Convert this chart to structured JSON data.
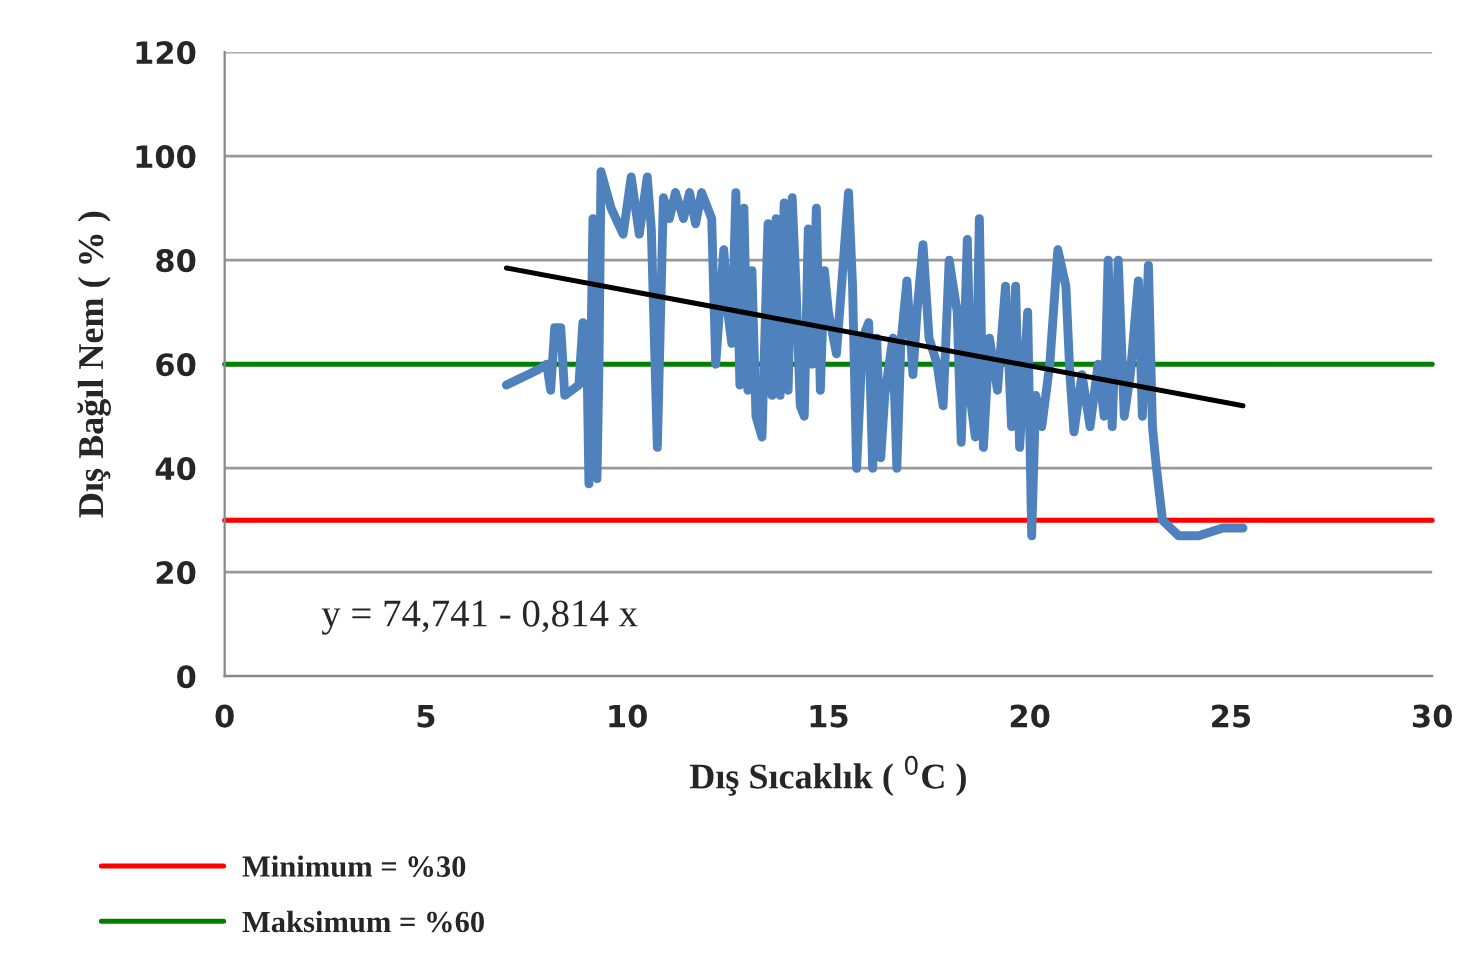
{
  "chart_data": {
    "type": "line",
    "xlabel": "Dış Sıcaklık ( $^{0}$C )",
    "ylabel": "Dış Bağıl Nem ( % )",
    "xlim": [
      0,
      30
    ],
    "xticks": [
      0,
      5,
      10,
      15,
      20,
      25,
      30
    ],
    "ylim": [
      0,
      120
    ],
    "yticks": [
      0,
      20,
      40,
      60,
      80,
      100,
      120
    ],
    "grid": "y",
    "legend": "bottom",
    "marker": "none",
    "line_style": "solid",
    "series": [
      {
        "color": "#4f81bd",
        "x": [
          7.0,
          7.8,
          8.0,
          8.1,
          8.2,
          8.35,
          8.45,
          8.8,
          8.9,
          9.0,
          9.05,
          9.15,
          9.25,
          9.3,
          9.35,
          9.6,
          9.9,
          10.1,
          10.3,
          10.5,
          10.6,
          10.75,
          10.9,
          11.05,
          11.2,
          11.4,
          11.55,
          11.7,
          11.85,
          12.0,
          12.1,
          12.2,
          12.4,
          12.5,
          12.6,
          12.7,
          12.8,
          12.9,
          13.0,
          13.1,
          13.2,
          13.35,
          13.5,
          13.6,
          13.7,
          13.8,
          13.9,
          14.0,
          14.1,
          14.2,
          14.3,
          14.4,
          14.5,
          14.6,
          14.7,
          14.8,
          14.9,
          15.0,
          15.2,
          15.5,
          15.6,
          15.7,
          15.85,
          16.0,
          16.1,
          16.2,
          16.3,
          16.4,
          16.6,
          16.7,
          16.8,
          16.95,
          17.1,
          17.2,
          17.35,
          17.5,
          17.7,
          17.85,
          18.0,
          18.2,
          18.3,
          18.45,
          18.55,
          18.65,
          18.75,
          18.85,
          19.0,
          19.2,
          19.4,
          19.55,
          19.65,
          19.75,
          19.95,
          20.05,
          20.15,
          20.3,
          20.5,
          20.7,
          20.9,
          21.0,
          21.1,
          21.3,
          21.5,
          21.7,
          21.85,
          21.95,
          22.05,
          22.2,
          22.35,
          22.5,
          22.7,
          22.8,
          22.95,
          23.05,
          23.15,
          23.3,
          23.7,
          24.2,
          24.8,
          25.3
        ],
        "values": [
          56,
          59,
          60,
          55,
          67,
          67,
          54,
          56,
          68,
          62,
          37,
          88,
          38,
          60,
          97,
          90,
          85,
          96,
          85,
          96,
          86,
          44,
          92,
          88,
          93,
          88,
          93,
          87,
          93,
          90,
          88,
          60,
          82,
          70,
          64,
          93,
          56,
          90,
          55,
          78,
          50,
          46,
          87,
          54,
          88,
          54,
          91,
          55,
          92,
          74,
          52,
          50,
          86,
          60,
          90,
          55,
          78,
          70,
          62,
          93,
          75,
          40,
          65,
          68,
          40,
          65,
          42,
          54,
          65,
          40,
          64,
          76,
          58,
          70,
          83,
          65,
          60,
          52,
          80,
          70,
          45,
          84,
          52,
          46,
          88,
          44,
          65,
          55,
          75,
          48,
          75,
          44,
          70,
          27,
          54,
          48,
          60,
          82,
          75,
          58,
          47,
          58,
          48,
          60,
          50,
          80,
          48,
          80,
          50,
          58,
          76,
          50,
          79,
          48,
          40,
          30,
          27,
          27,
          28.5,
          28.5
        ]
      },
      {
        "color": "#000000",
        "x": [
          7.0,
          25.3
        ],
        "values": [
          78.5,
          52
        ]
      }
    ],
    "ref_lines": [
      {
        "axis": "y",
        "value": 30,
        "label": "Minimum = %30",
        "color": "#ff0000",
        "line_style": "solid"
      },
      {
        "axis": "y",
        "value": 60,
        "label": "Maksimum = %60",
        "color": "#008000",
        "line_style": "solid"
      }
    ],
    "annotations": [
      "y = 74,741 - 0,814 x"
    ]
  }
}
